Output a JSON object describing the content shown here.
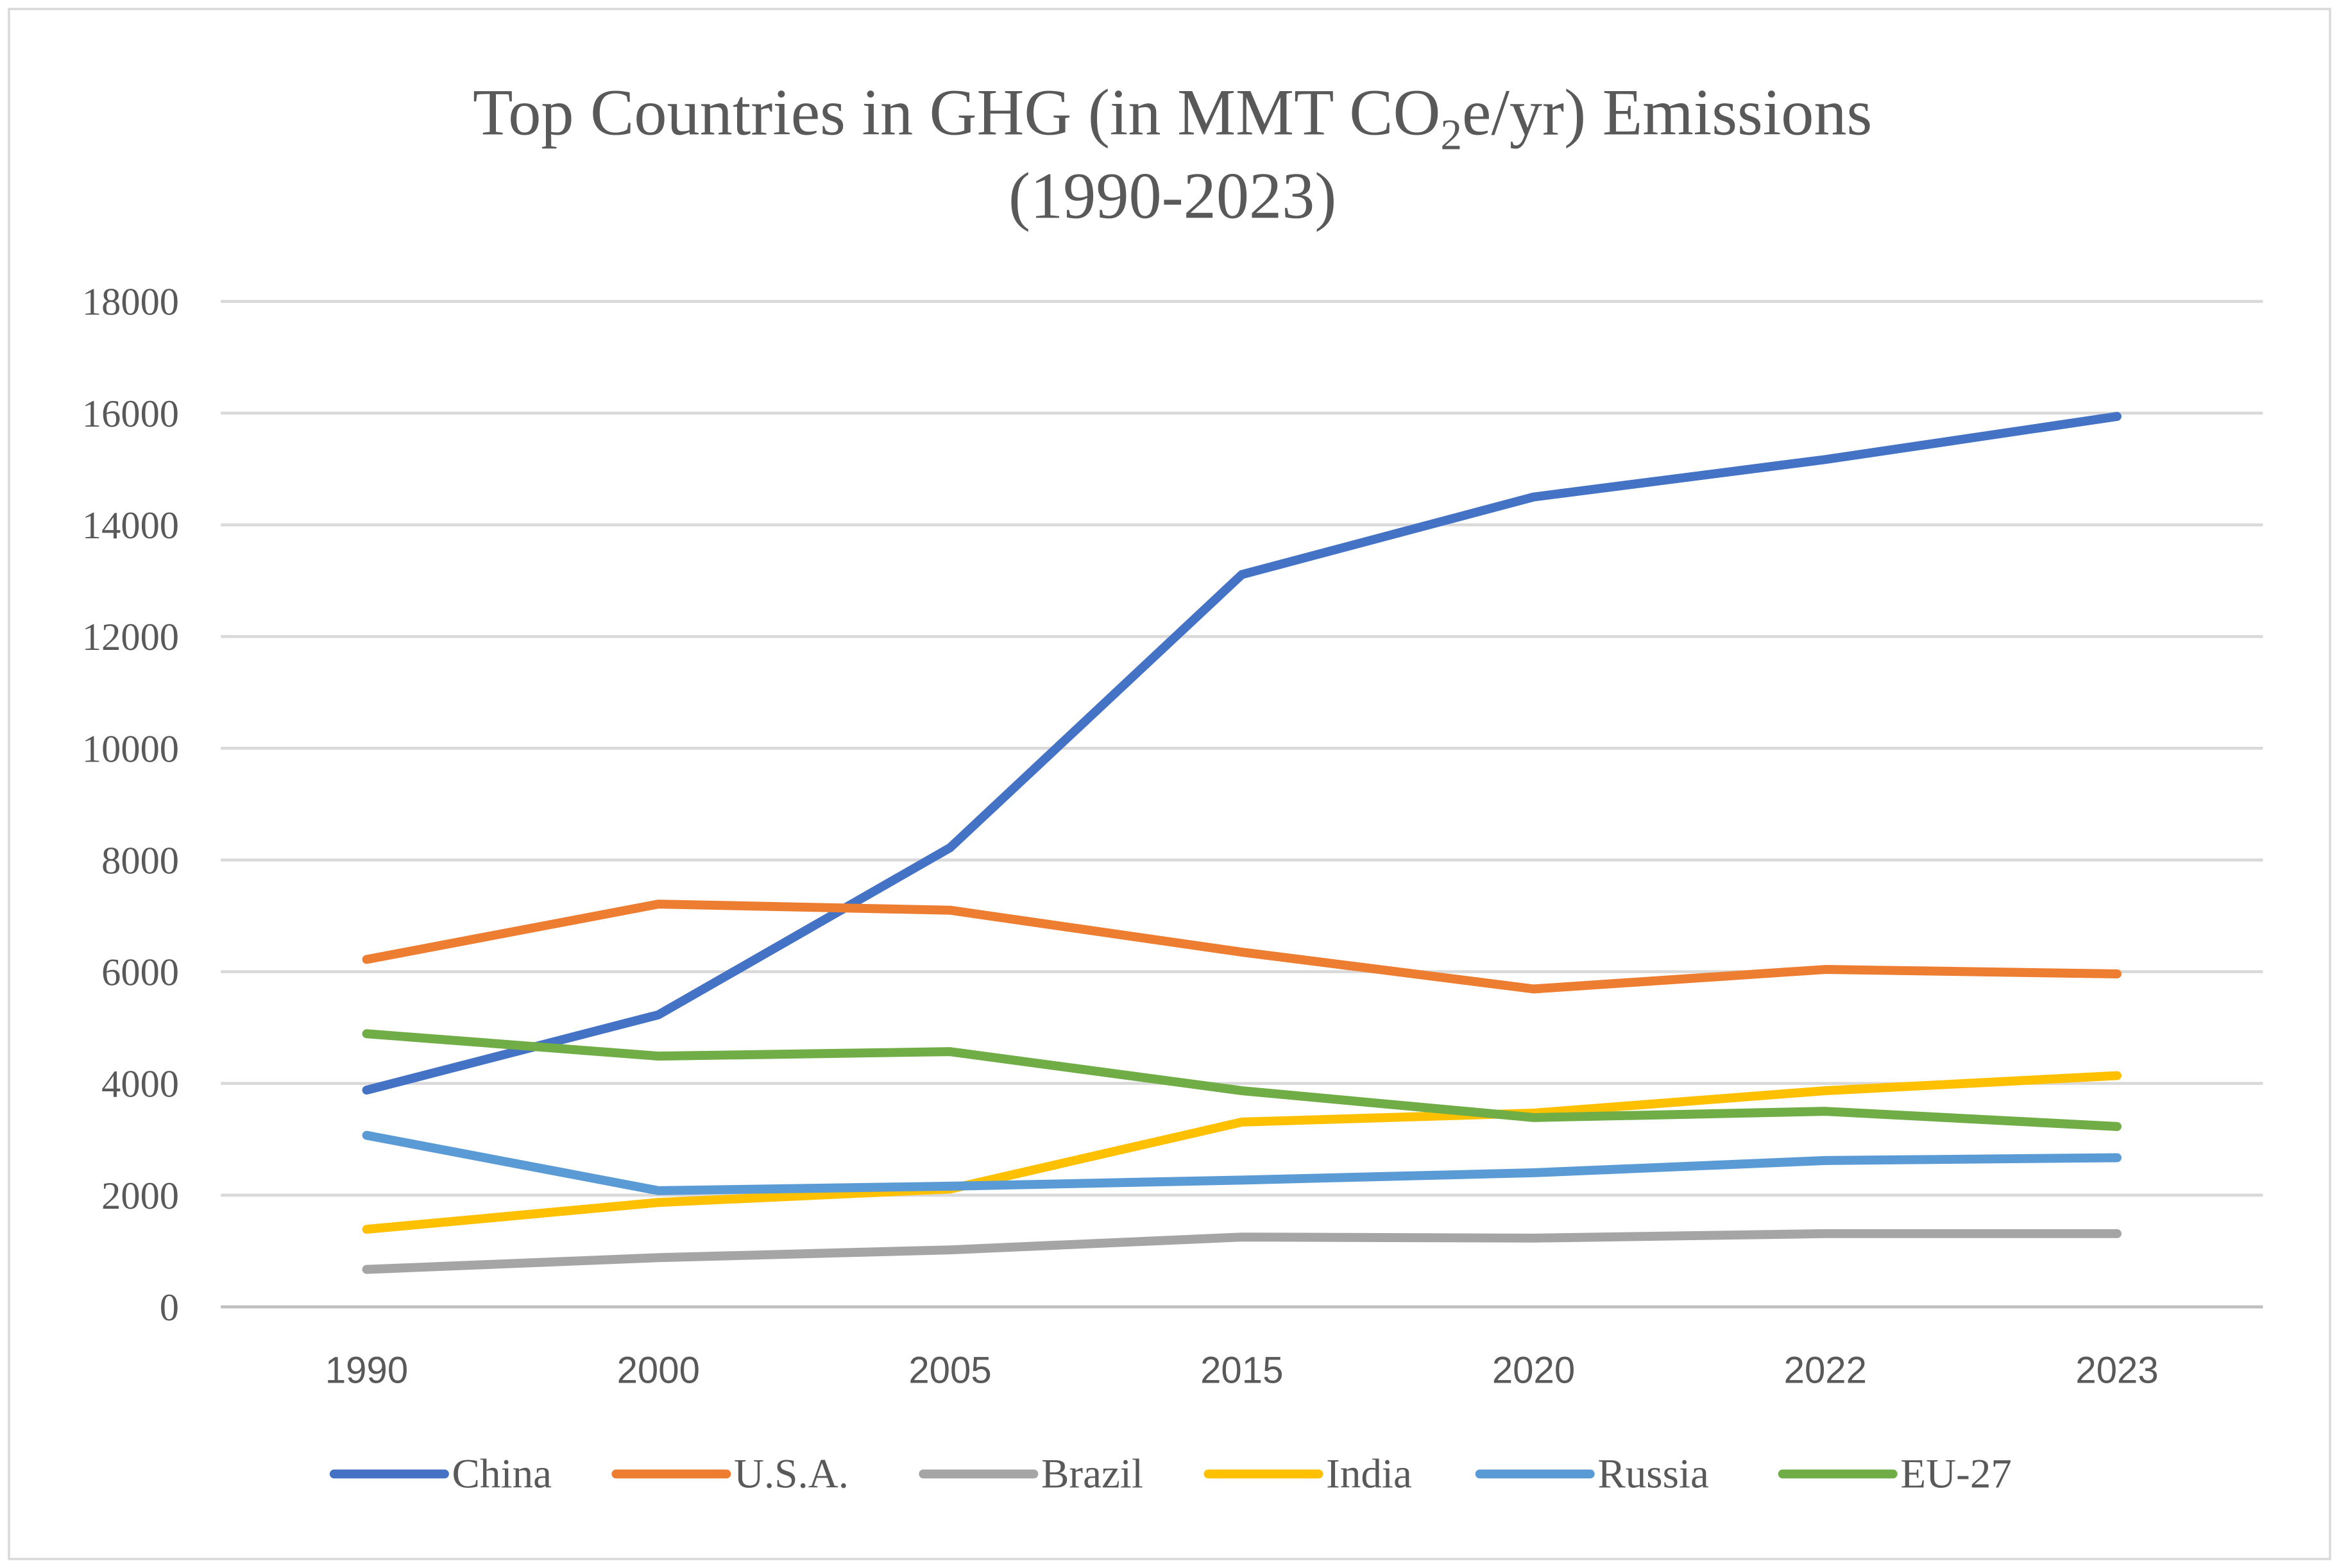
{
  "chart_data": {
    "type": "line",
    "title": {
      "line1_pre": "Top Countries in GHG (in MMT CO",
      "line1_sub": "2",
      "line1_post": "e/yr) Emissions",
      "line2": "(1990-2023)"
    },
    "xlabel": "",
    "ylabel": "",
    "categories": [
      "1990",
      "2000",
      "2005",
      "2015",
      "2020",
      "2022",
      "2023"
    ],
    "yticks": [
      "0",
      "2000",
      "4000",
      "6000",
      "8000",
      "10000",
      "12000",
      "14000",
      "16000",
      "18000"
    ],
    "ylim": [
      0,
      18000
    ],
    "grid": true,
    "legend_position": "bottom",
    "series": [
      {
        "name": "China",
        "color": "#4472C4",
        "values": [
          3880,
          5230,
          8220,
          13110,
          14500,
          15170,
          15940
        ]
      },
      {
        "name": "U.S.A.",
        "color": "#ED7D31",
        "values": [
          6220,
          7210,
          7100,
          6350,
          5690,
          6040,
          5960
        ]
      },
      {
        "name": "Brazil",
        "color": "#A5A5A5",
        "values": [
          670,
          880,
          1020,
          1250,
          1230,
          1310,
          1310
        ]
      },
      {
        "name": "India",
        "color": "#FFC000",
        "values": [
          1390,
          1870,
          2110,
          3310,
          3470,
          3870,
          4140
        ]
      },
      {
        "name": "Russia",
        "color": "#5B9BD5",
        "values": [
          3070,
          2080,
          2160,
          2270,
          2400,
          2620,
          2670
        ]
      },
      {
        "name": "EU-27",
        "color": "#70AD47",
        "values": [
          4890,
          4490,
          4570,
          3870,
          3390,
          3500,
          3230
        ]
      }
    ]
  }
}
